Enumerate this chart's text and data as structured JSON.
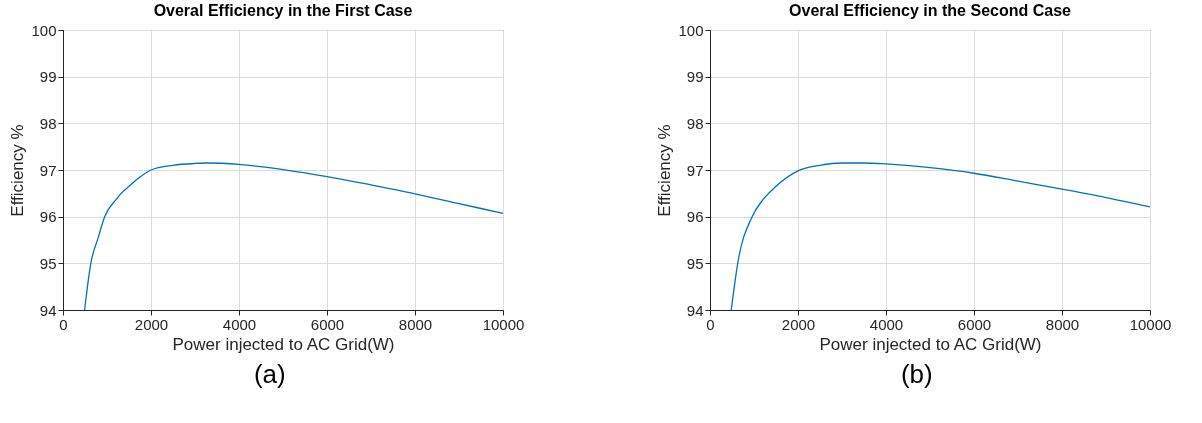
{
  "chart_data": [
    {
      "type": "line",
      "title": "Overal Efficiency in the First Case",
      "xlabel": "Power injected to AC Grid(W)",
      "ylabel": "Efficiency %",
      "annotations": [
        "(a)"
      ],
      "xlim": [
        0,
        10000
      ],
      "ylim": [
        94,
        100
      ],
      "xticks": [
        0,
        2000,
        4000,
        6000,
        8000,
        10000
      ],
      "yticks": [
        94,
        95,
        96,
        97,
        98,
        99,
        100
      ],
      "grid": true,
      "marker": "none",
      "line_style": "solid",
      "x": [
        491,
        632,
        800,
        947,
        1200,
        1333,
        1500,
        1750,
        2000,
        2500,
        3000,
        3300,
        4000,
        5000,
        6000,
        7000,
        8000,
        9000,
        10000
      ],
      "series": [
        {
          "color": "#0072bd",
          "values": [
            94,
            95,
            95.55,
            96,
            96.36,
            96.51,
            96.65,
            96.85,
            97.0,
            97.1,
            97.14,
            97.15,
            97.12,
            97.01,
            96.86,
            96.68,
            96.49,
            96.28,
            96.07
          ]
        }
      ]
    },
    {
      "type": "line",
      "title": "Overal Efficiency in the Second Case",
      "xlabel": "Power injected to AC Grid(W)",
      "ylabel": "Efficiency %",
      "annotations": [
        "(b)"
      ],
      "xlim": [
        0,
        10000
      ],
      "ylim": [
        94,
        100
      ],
      "xticks": [
        0,
        2000,
        4000,
        6000,
        8000,
        10000
      ],
      "yticks": [
        94,
        95,
        96,
        97,
        98,
        99,
        100
      ],
      "grid": true,
      "marker": "none",
      "line_style": "solid",
      "x": [
        483,
        630,
        958,
        1200,
        1500,
        2000,
        2500,
        3000,
        3500,
        4000,
        5000,
        6000,
        7000,
        8000,
        9000,
        10000
      ],
      "series": [
        {
          "color": "#0072bd",
          "values": [
            94,
            95,
            96,
            96.36,
            96.65,
            96.98,
            97.1,
            97.15,
            97.15,
            97.13,
            97.05,
            96.93,
            96.76,
            96.59,
            96.41,
            96.21
          ]
        }
      ]
    }
  ]
}
